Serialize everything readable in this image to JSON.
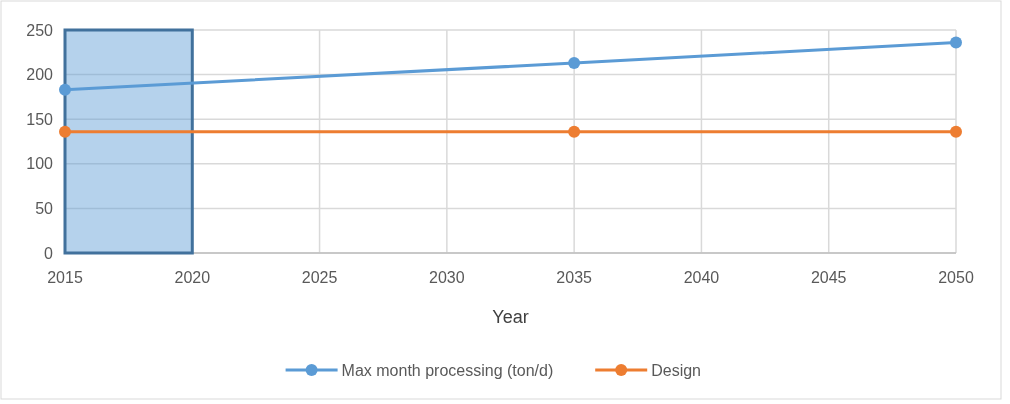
{
  "chart_data": {
    "type": "line",
    "xlabel": "Year",
    "x": [
      2015,
      2035,
      2050
    ],
    "series": [
      {
        "name": "Max month processing (ton/d)",
        "color": "#5b9bd5",
        "values": [
          183,
          213,
          236
        ]
      },
      {
        "name": "Design",
        "color": "#ed7d31",
        "values": [
          136,
          136,
          136
        ]
      }
    ],
    "xlim": [
      2015,
      2050
    ],
    "xticks": [
      2015,
      2020,
      2025,
      2030,
      2035,
      2040,
      2045,
      2050
    ],
    "ylim": [
      0,
      250
    ],
    "yticks": [
      0,
      50,
      100,
      150,
      200,
      250
    ],
    "bands": [
      {
        "axis": "x",
        "from": 2015,
        "to": 2020,
        "color": "#5b9bd5"
      }
    ],
    "grid": true,
    "legend": "bottom",
    "marker": "circle",
    "line_style": "solid"
  }
}
